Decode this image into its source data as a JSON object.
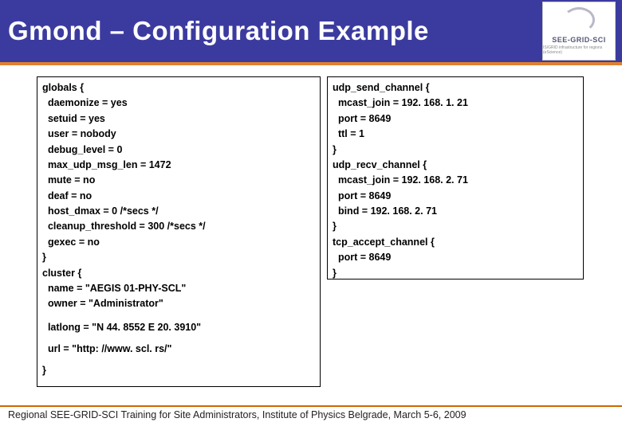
{
  "slide": {
    "title": "Gmond – Configuration Example",
    "header_bg": "#3b3b9f",
    "header_accent": "#e08030",
    "logo": {
      "label": "SEE-GRID-SCI",
      "sub": "IS/GRID infrastructure for regions (eScience)"
    },
    "left_lines": [
      "globals {",
      "  daemonize = yes",
      "  setuid = yes",
      "  user = nobody",
      "  debug_level = 0",
      "  max_udp_msg_len = 1472",
      "  mute = no",
      "  deaf = no",
      "  host_dmax = 0 /*secs */",
      "  cleanup_threshold = 300 /*secs */",
      "  gexec = no",
      "}",
      "cluster {",
      "  name = \"AEGIS 01-PHY-SCL\"",
      "  owner = \"Administrator\""
    ],
    "left_extras": [
      "  latlong = \"N 44. 8552 E 20. 3910\"",
      "  url = \"http: //www. scl. rs/\"",
      "}"
    ],
    "right_lines": [
      "udp_send_channel {",
      "  mcast_join = 192. 168. 1. 21",
      "  port = 8649",
      "  ttl = 1",
      "}",
      "udp_recv_channel {",
      "  mcast_join = 192. 168. 2. 71",
      "  port = 8649",
      "  bind = 192. 168. 2. 71",
      "}",
      "tcp_accept_channel {",
      "  port = 8649",
      "}"
    ],
    "footer": "Regional SEE-GRID-SCI Training for Site Administrators, Institute of Physics Belgrade, March 5-6, 2009"
  }
}
